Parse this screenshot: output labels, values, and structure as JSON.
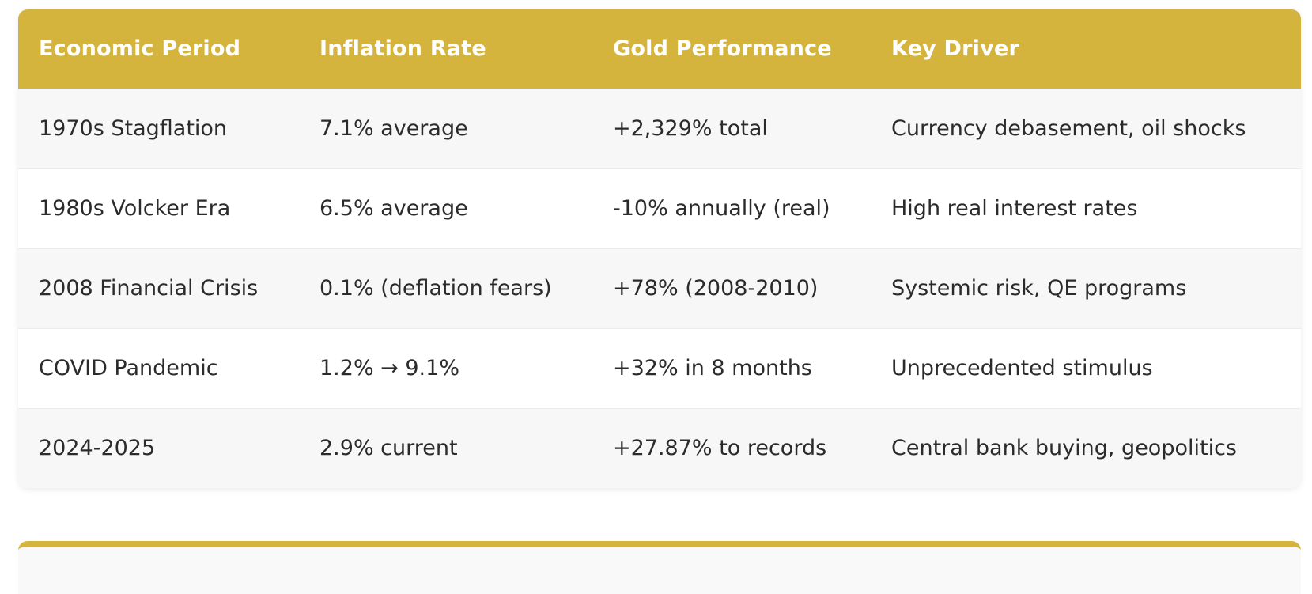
{
  "colors": {
    "header_bg": "#D4B43C",
    "header_text": "#ffffff",
    "row_alt": "#f7f7f7",
    "row": "#ffffff",
    "text": "#2b2b2b"
  },
  "table": {
    "headers": [
      "Economic Period",
      "Inflation Rate",
      "Gold Performance",
      "Key Driver"
    ],
    "rows": [
      [
        "1970s Stagflation",
        "7.1% average",
        "+2,329% total",
        "Currency debasement, oil shocks"
      ],
      [
        "1980s Volcker Era",
        "6.5% average",
        "-10% annually (real)",
        "High real interest rates"
      ],
      [
        "2008 Financial Crisis",
        "0.1% (deflation fears)",
        "+78% (2008-2010)",
        "Systemic risk, QE programs"
      ],
      [
        "COVID Pandemic",
        "1.2% → 9.1%",
        "+32% in 8 months",
        "Unprecedented stimulus"
      ],
      [
        "2024-2025",
        "2.9% current",
        "+27.87% to records",
        "Central bank buying, geopolitics"
      ]
    ]
  }
}
